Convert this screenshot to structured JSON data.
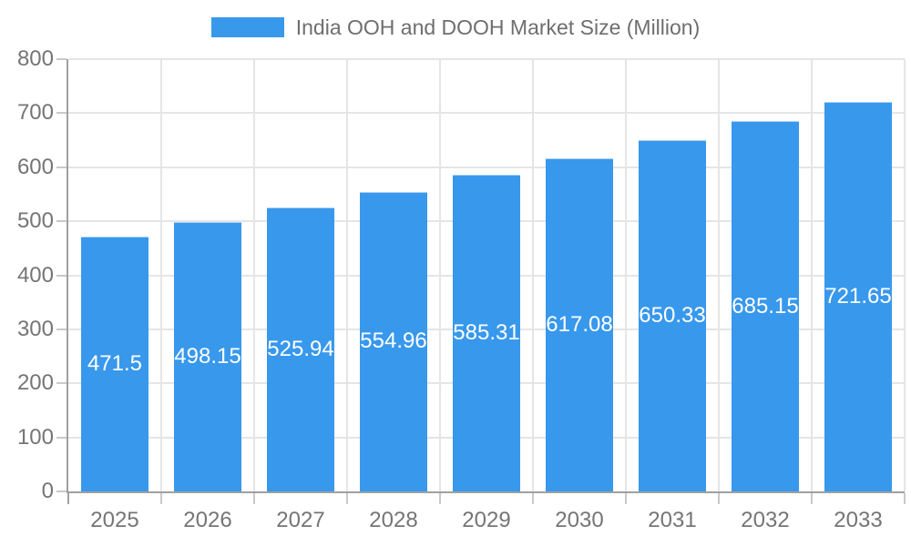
{
  "legend": {
    "series_label": "India OOH and DOOH Market Size (Million)"
  },
  "chart_data": {
    "type": "bar",
    "title": "India OOH and DOOH Market Size (Million)",
    "categories": [
      "2025",
      "2026",
      "2027",
      "2028",
      "2029",
      "2030",
      "2031",
      "2032",
      "2033"
    ],
    "series": [
      {
        "name": "India OOH and DOOH Market Size (Million)",
        "values": [
          471.5,
          498.15,
          525.94,
          554.96,
          585.31,
          617.08,
          650.33,
          685.15,
          721.65
        ]
      }
    ],
    "value_labels": [
      "471.5",
      "498.15",
      "525.94",
      "554.96",
      "585.31",
      "617.08",
      "650.33",
      "685.15",
      "721.65"
    ],
    "xlabel": "",
    "ylabel": "",
    "ylim": [
      0,
      800
    ],
    "yticks": [
      0,
      100,
      200,
      300,
      400,
      500,
      600,
      700,
      800
    ],
    "grid": true,
    "legend_position": "top"
  },
  "colors": {
    "bar": "#3898EC",
    "bar_top_edge": "#A9CFF4",
    "axis_line": "#A0A0A0",
    "gridline": "#E5E5E5",
    "tick": "#C9C9C9",
    "tick_label": "#757575",
    "title_text": "#6E6E6E",
    "value_label": "#FFFFFF",
    "background": "#FFFFFF"
  }
}
